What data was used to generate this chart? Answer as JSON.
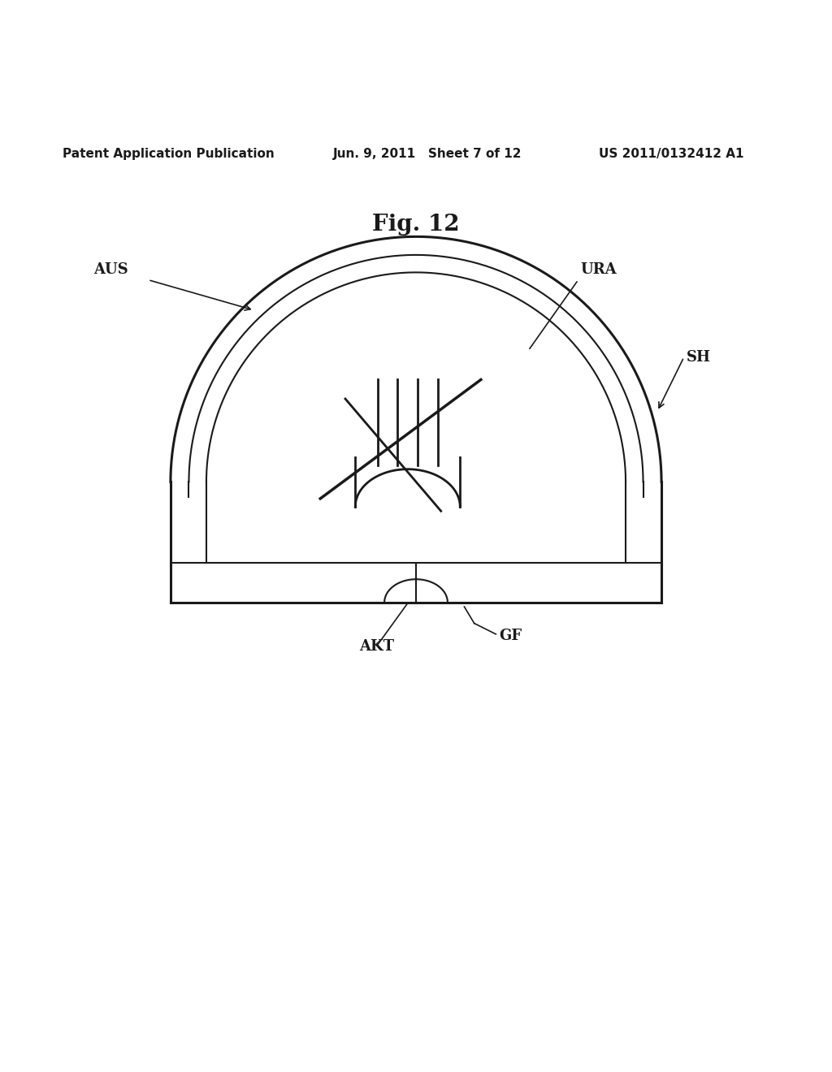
{
  "title": "Fig. 12",
  "header_left": "Patent Application Publication",
  "header_mid": "Jun. 9, 2011   Sheet 7 of 12",
  "header_right": "US 2011/0132412 A1",
  "bg_color": "#ffffff",
  "line_color": "#1a1a1a",
  "label_AUS": "AUS",
  "label_URA": "URA",
  "label_SH": "SH",
  "label_AKT": "AKT",
  "label_GF": "GF"
}
